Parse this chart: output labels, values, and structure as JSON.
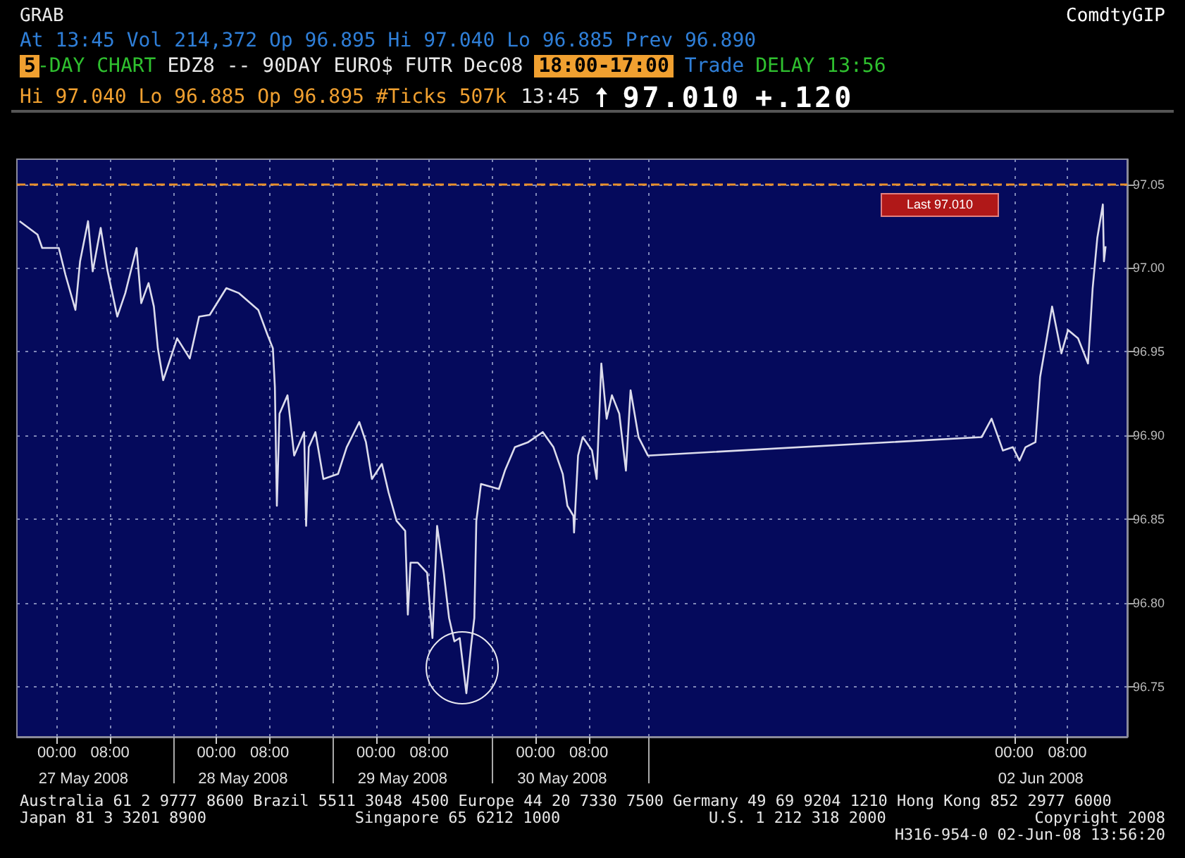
{
  "chart_data": {
    "type": "line",
    "color": "#dcdcec",
    "marker": "none",
    "grid": true,
    "x": [
      "2008-05-26T18:24",
      "2008-05-26T21:06",
      "2008-05-26T21:48",
      "2008-05-27T00:18",
      "2008-05-27T01:18",
      "2008-05-27T02:48",
      "2008-05-27T03:30",
      "2008-05-27T04:42",
      "2008-05-27T05:24",
      "2008-05-27T06:36",
      "2008-05-27T07:36",
      "2008-05-27T09:06",
      "2008-05-27T10:18",
      "2008-05-27T12:00",
      "2008-05-27T12:42",
      "2008-05-27T13:48",
      "2008-05-27T14:36",
      "2008-05-27T15:12",
      "2008-05-27T16:00",
      "2008-05-27T18:06",
      "2008-05-27T20:00",
      "2008-05-27T21:24",
      "2008-05-27T23:00",
      "2008-05-28T01:30",
      "2008-05-28T03:24",
      "2008-05-28T06:18",
      "2008-05-28T07:42",
      "2008-05-28T08:30",
      "2008-05-28T08:48",
      "2008-05-28T09:06",
      "2008-05-28T09:30",
      "2008-05-28T10:42",
      "2008-05-28T11:42",
      "2008-05-28T13:12",
      "2008-05-28T13:30",
      "2008-05-28T13:54",
      "2008-05-28T14:54",
      "2008-05-28T16:06",
      "2008-05-28T18:18",
      "2008-05-28T19:36",
      "2008-05-28T21:30",
      "2008-05-28T22:30",
      "2008-05-28T23:24",
      "2008-05-29T00:54",
      "2008-05-29T01:54",
      "2008-05-29T03:06",
      "2008-05-29T04:24",
      "2008-05-29T04:48",
      "2008-05-29T05:12",
      "2008-05-29T06:18",
      "2008-05-29T07:42",
      "2008-05-29T08:30",
      "2008-05-29T09:12",
      "2008-05-29T10:12",
      "2008-05-29T11:00",
      "2008-05-29T11:48",
      "2008-05-29T12:36",
      "2008-05-29T13:36",
      "2008-05-29T14:18",
      "2008-05-29T14:48",
      "2008-05-29T15:06",
      "2008-05-29T15:48",
      "2008-05-29T18:30",
      "2008-05-29T19:24",
      "2008-05-29T20:54",
      "2008-05-29T22:54",
      "2008-05-30T01:06",
      "2008-05-30T02:42",
      "2008-05-30T04:06",
      "2008-05-30T04:48",
      "2008-05-30T05:42",
      "2008-05-30T05:48",
      "2008-05-30T06:24",
      "2008-05-30T07:06",
      "2008-05-30T08:30",
      "2008-05-30T09:12",
      "2008-05-30T09:54",
      "2008-05-30T10:42",
      "2008-05-30T11:30",
      "2008-05-30T12:36",
      "2008-05-30T13:36",
      "2008-05-30T14:18",
      "2008-05-30T15:30",
      "2008-05-30T16:54",
      "2008-06-01T19:06",
      "2008-06-01T20:36",
      "2008-06-01T22:18",
      "2008-06-01T23:48",
      "2008-06-02T00:48",
      "2008-06-02T01:42",
      "2008-06-02T03:12",
      "2008-06-02T03:54",
      "2008-06-02T04:54",
      "2008-06-02T05:42",
      "2008-06-02T07:06",
      "2008-06-02T08:06",
      "2008-06-02T09:36",
      "2008-06-02T11:06",
      "2008-06-02T11:48",
      "2008-06-02T12:30",
      "2008-06-02T13:20",
      "2008-06-02T13:30",
      "2008-06-02T13:45"
    ],
    "values": [
      97.028,
      97.02,
      97.012,
      97.012,
      96.996,
      96.975,
      97.004,
      97.028,
      96.998,
      97.024,
      96.999,
      96.971,
      96.985,
      97.012,
      96.979,
      96.991,
      96.977,
      96.952,
      96.933,
      96.958,
      96.946,
      96.971,
      96.972,
      96.988,
      96.985,
      96.975,
      96.96,
      96.952,
      96.929,
      96.858,
      96.913,
      96.924,
      96.888,
      96.902,
      96.846,
      96.893,
      96.902,
      96.874,
      96.877,
      96.893,
      96.908,
      96.896,
      96.874,
      96.883,
      96.866,
      96.849,
      96.843,
      96.793,
      96.824,
      96.824,
      96.818,
      96.779,
      96.846,
      96.818,
      96.791,
      96.777,
      96.779,
      96.746,
      96.774,
      96.791,
      96.849,
      96.871,
      96.868,
      96.879,
      96.893,
      96.896,
      96.902,
      96.893,
      96.877,
      96.858,
      96.852,
      96.842,
      96.888,
      96.899,
      96.891,
      96.874,
      96.943,
      96.91,
      96.924,
      96.913,
      96.879,
      96.927,
      96.899,
      96.888,
      96.899,
      96.91,
      96.891,
      96.893,
      96.885,
      96.893,
      96.896,
      96.935,
      96.958,
      96.977,
      96.949,
      96.963,
      96.958,
      96.943,
      96.988,
      97.018,
      97.038,
      97.004,
      97.013
    ],
    "xlim": [
      "2008-05-26T18:00",
      "2008-06-02T17:00"
    ],
    "xticks": [
      {
        "value": "2008-05-27T00:00",
        "label": "00:00"
      },
      {
        "value": "2008-05-27T08:00",
        "label": "08:00"
      },
      {
        "value": "2008-05-27T17:30",
        "label": null
      },
      {
        "value": "2008-05-28T00:00",
        "label": "00:00"
      },
      {
        "value": "2008-05-28T08:00",
        "label": "08:00"
      },
      {
        "value": "2008-05-28T17:30",
        "label": null
      },
      {
        "value": "2008-05-29T00:00",
        "label": "00:00"
      },
      {
        "value": "2008-05-29T08:00",
        "label": "08:00"
      },
      {
        "value": "2008-05-29T17:30",
        "label": null
      },
      {
        "value": "2008-05-30T00:00",
        "label": "00:00"
      },
      {
        "value": "2008-05-30T08:00",
        "label": "08:00"
      },
      {
        "value": "2008-05-30T17:00",
        "label": null
      },
      {
        "value": "2008-06-02T00:00",
        "label": "00:00"
      },
      {
        "value": "2008-06-02T08:00",
        "label": "08:00"
      }
    ],
    "ylim": [
      96.72,
      97.065
    ],
    "yticks": [
      96.75,
      {
        "value": 96.8,
        "label": "96.80"
      },
      96.85,
      {
        "value": 96.9,
        "label": "96.90"
      },
      96.95,
      {
        "value": 97,
        "label": "97.00"
      },
      97.05
    ],
    "ref_lines": [
      {
        "axis": "y",
        "value": 97.05,
        "color": "#e8902c",
        "line_style": "dashed"
      }
    ],
    "annotations": [
      "GRAB",
      "ComdtyGIP",
      "At 13:45 Vol 214,372 Op 96.895 Hi 97.040 Lo 96.885 Prev 96.890",
      "5",
      "-DAY CHART",
      "EDZ8 -- 90DAY EURO$ FUTR",
      "Dec08",
      "18:00-17:00",
      "Trade",
      "DELAY 13:56",
      "Hi 97.040 Lo 96.885 Op 96.895 #Ticks 507k",
      "13:45",
      "97.010",
      "+.120",
      "Last 97.010",
      "Australia 61 2 9777 8600 Brazil 5511 3048 4500 Europe 44 20 7330 7500 Germany 49 69 9204 1210 Hong Kong 852 2977 6000",
      "Japan 81 3 3201 8900",
      "Singapore 65 6212 1000",
      "U.S. 1 212 318 2000",
      "Copyright 2008",
      "H316-954-0 02-Jun-08 13:56:20",
      "27 May 2008",
      "28 May 2008",
      "29 May 2008",
      "30 May 2008",
      "02 Jun 2008"
    ]
  }
}
